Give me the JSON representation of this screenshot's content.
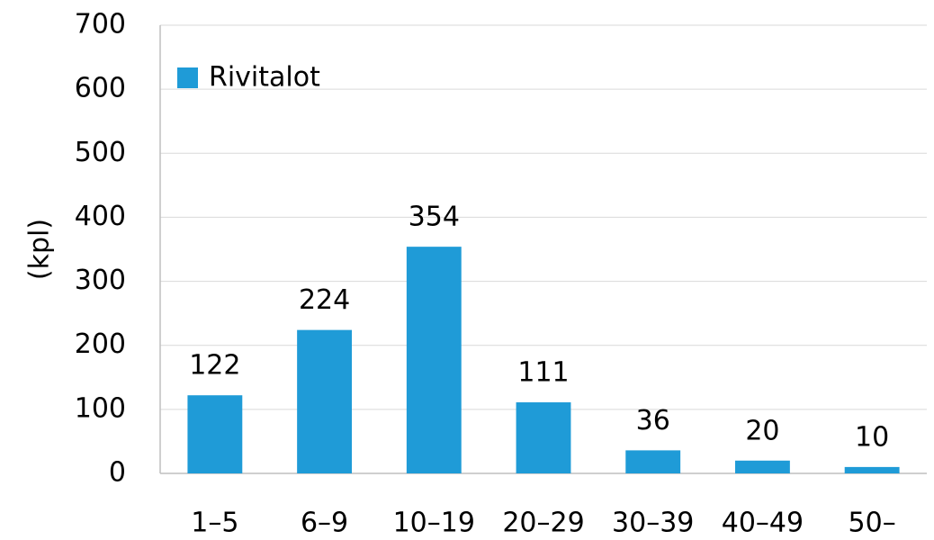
{
  "chart_data": {
    "type": "bar",
    "y_label": "(kpl)",
    "categories": [
      "1–5",
      "6–9",
      "10–19",
      "20–29",
      "30–39",
      "40–49",
      "50–"
    ],
    "series": [
      {
        "name": "Rivitalot",
        "color": "#1f9bd7",
        "values": [
          122,
          224,
          354,
          111,
          36,
          20,
          10
        ]
      }
    ],
    "ylim": [
      0,
      700
    ],
    "yticks": [
      0,
      100,
      200,
      300,
      400,
      500,
      600,
      700
    ],
    "grid": true,
    "legend": "top-left",
    "data_labels": true
  }
}
